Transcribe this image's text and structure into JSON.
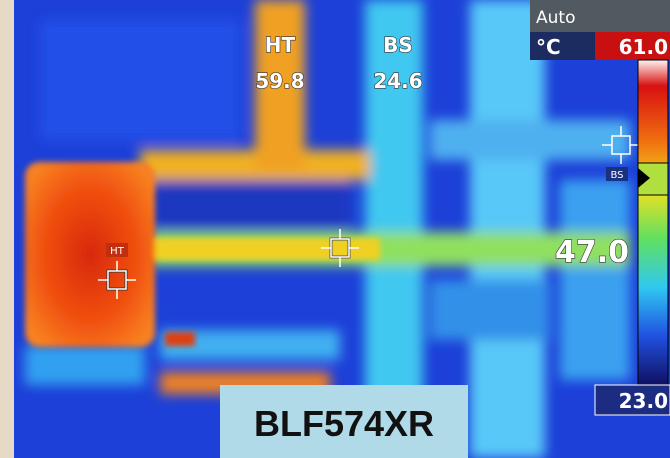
{
  "overlay": {
    "spots": [
      {
        "label": "HT",
        "value": "59.8"
      },
      {
        "label": "BS",
        "value": "24.6"
      }
    ],
    "mode": "Auto",
    "unit": "°C",
    "scale_max": "61.0",
    "scale_min": "23.0",
    "center_reading": "47.0",
    "marker_labels": [
      "HT",
      "BS"
    ]
  },
  "caption": "BLF574XR"
}
